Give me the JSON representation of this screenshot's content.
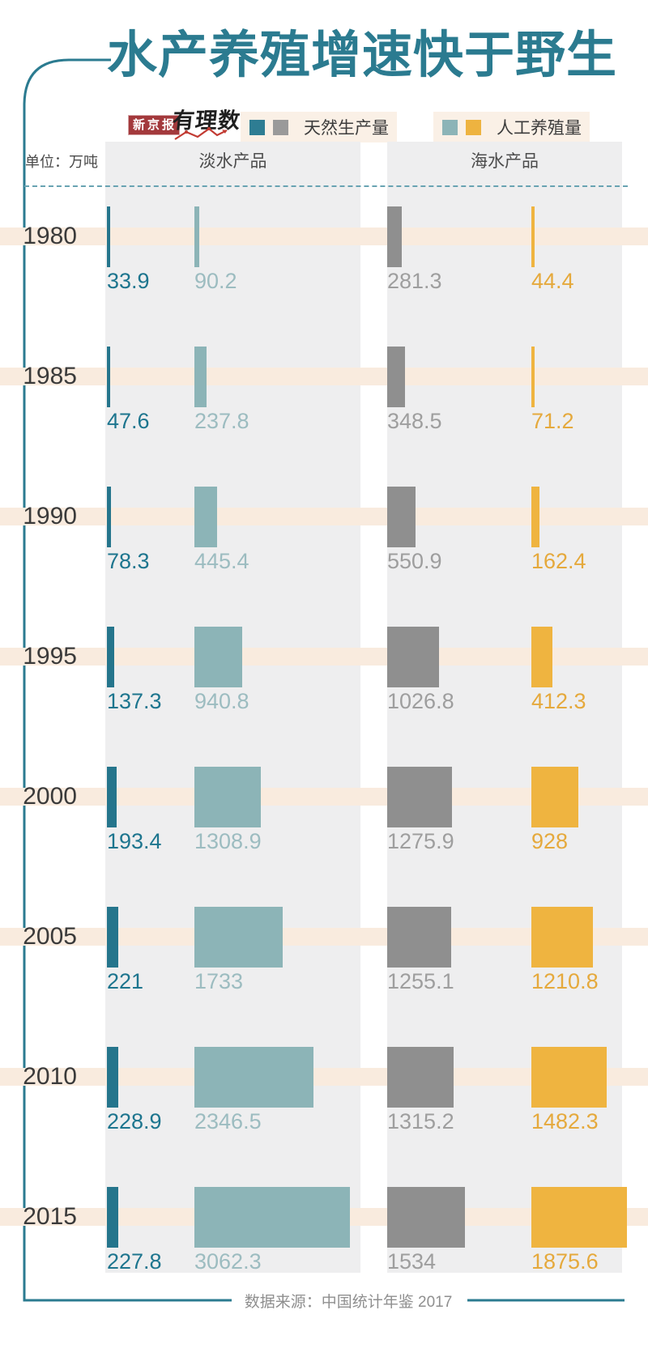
{
  "title": "水产养殖增速快于野生",
  "brand": {
    "newspaper": "新京报",
    "column": "有理数"
  },
  "legend": [
    {
      "label": "天然生产量",
      "colors": [
        "#2e7d93",
        "#9a9a9a"
      ]
    },
    {
      "label": "人工养殖量",
      "colors": [
        "#8cb4b7",
        "#eeb340"
      ]
    }
  ],
  "unit_label": "单位：万吨",
  "columns": [
    "淡水产品",
    "海水产品"
  ],
  "footer": {
    "text": "数据来源：中国统计年鉴 2017"
  },
  "colors": {
    "title_teal": "#2b7b90",
    "frame_teal": "#2b7b90",
    "row_band_peach": "#f9ebde",
    "column_band_gray": "#eeeeef",
    "legend_bg_cream": "#faf0e6",
    "logo_red": "#a3393c",
    "logo_underline_red": "#c23b33"
  },
  "chart_data": {
    "type": "bar",
    "title": "水产养殖增速快于野生",
    "unit": "万吨",
    "legend_position": "top",
    "orientation": "horizontal-width-encoded",
    "categories": [
      "1980",
      "1985",
      "1990",
      "1995",
      "2000",
      "2005",
      "2010",
      "2015"
    ],
    "groups": [
      "淡水产品",
      "海水产品"
    ],
    "series": [
      {
        "name": "淡水产品 天然生产量",
        "legend": "天然生产量",
        "color": "#25758c",
        "label_color": "#1d758e",
        "values": [
          33.9,
          47.6,
          78.3,
          137.3,
          193.4,
          221,
          228.9,
          227.8
        ]
      },
      {
        "name": "淡水产品 人工养殖量",
        "legend": "人工养殖量",
        "color": "#8cb4b7",
        "label_color": "#9cbcc0",
        "values": [
          90.2,
          237.8,
          445.4,
          940.8,
          1308.9,
          1733,
          2346.5,
          3062.3
        ]
      },
      {
        "name": "海水产品 天然生产量",
        "legend": "天然生产量",
        "color": "#8f8f8f",
        "label_color": "#9e9e9e",
        "values": [
          281.3,
          348.5,
          550.9,
          1026.8,
          1275.9,
          1255.1,
          1315.2,
          1534
        ]
      },
      {
        "name": "海水产品 人工养殖量",
        "legend": "人工养殖量",
        "color": "#efb440",
        "label_color": "#e5a93c",
        "values": [
          44.4,
          71.2,
          162.4,
          412.3,
          928,
          1210.8,
          1482.3,
          1875.6
        ]
      }
    ]
  }
}
